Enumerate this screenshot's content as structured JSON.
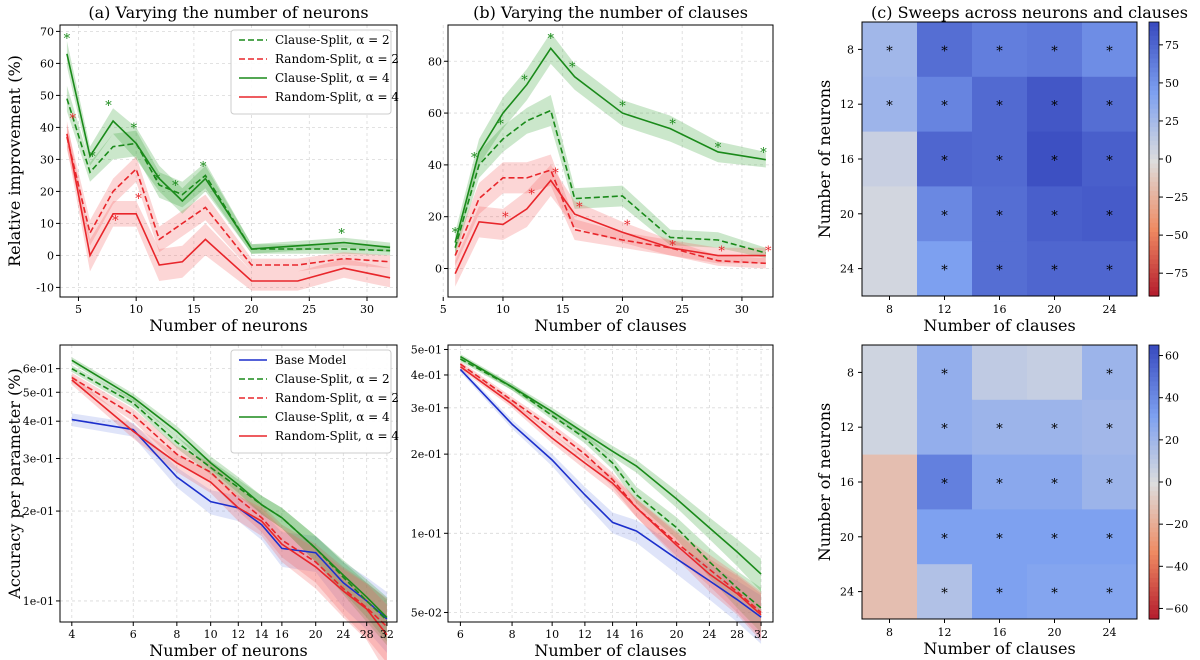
{
  "colors": {
    "green": "#1a8a1a",
    "red": "#e8262b",
    "blue": "#1c2fcc",
    "green_band": "#2e9e2e",
    "red_band": "#f25a5a",
    "blue_band": "#7f93e8",
    "grid": "#d9d9d9"
  },
  "chart_data": [
    {
      "id": "a",
      "type": "line",
      "title": "(a) Varying the number of neurons",
      "xlabel": "Number of neurons",
      "ylabel": "Relative improvement (%)",
      "xlim": [
        3.4,
        32.6
      ],
      "ylim": [
        -13,
        72
      ],
      "xticks": [
        5,
        10,
        15,
        20,
        25,
        30
      ],
      "yticks": [
        -10,
        0,
        10,
        20,
        30,
        40,
        50,
        60,
        70
      ],
      "grid": true,
      "legend_position": "top-right",
      "legend": [
        "Clause-Split, α = 2",
        "Random-Split, α = 2",
        "Clause-Split, α = 4",
        "Random-Split, α = 4"
      ],
      "x": [
        4,
        6,
        8,
        10,
        12,
        14,
        16,
        20,
        24,
        28,
        32
      ],
      "series": [
        {
          "name": "Clause-Split, α = 2",
          "color": "green",
          "dash": true,
          "values": [
            49,
            26,
            34,
            35,
            22,
            19,
            25,
            2,
            2,
            2,
            1.5
          ],
          "band": [
            4,
            3,
            4,
            4,
            4,
            4,
            4,
            1.5,
            1.5,
            1.5,
            1.5
          ]
        },
        {
          "name": "Random-Split, α = 2",
          "color": "red",
          "dash": true,
          "values": [
            37,
            7,
            20,
            27,
            5,
            10,
            15,
            -3,
            -3,
            -1,
            -2
          ],
          "band": [
            4,
            4,
            4,
            4,
            4,
            4,
            4,
            2,
            2,
            2,
            2
          ]
        },
        {
          "name": "Clause-Split, α = 4",
          "color": "green",
          "dash": false,
          "values": [
            63,
            31,
            42,
            35,
            24,
            17,
            24,
            2,
            3,
            4,
            2.5
          ],
          "band": [
            4,
            3,
            4,
            5,
            4,
            4,
            4,
            1.5,
            1.5,
            1.5,
            1.5
          ]
        },
        {
          "name": "Random-Split, α = 4",
          "color": "red",
          "dash": false,
          "values": [
            38,
            0,
            13,
            13,
            -3,
            -2,
            5,
            -8,
            -8,
            -4,
            -7
          ],
          "band": [
            4,
            5,
            4,
            4,
            5,
            5,
            5,
            3,
            3,
            3,
            3
          ]
        }
      ],
      "stars": [
        {
          "x": 4,
          "y": 68,
          "color": "green"
        },
        {
          "x": 4.5,
          "y": 43,
          "color": "red"
        },
        {
          "x": 6.2,
          "y": 31,
          "color": "green"
        },
        {
          "x": 7.6,
          "y": 47,
          "color": "green"
        },
        {
          "x": 8.2,
          "y": 11,
          "color": "red"
        },
        {
          "x": 9.8,
          "y": 40,
          "color": "green"
        },
        {
          "x": 10.2,
          "y": 18,
          "color": "red"
        },
        {
          "x": 11.8,
          "y": 24,
          "color": "green"
        },
        {
          "x": 13.4,
          "y": 22,
          "color": "green"
        },
        {
          "x": 15.8,
          "y": 28,
          "color": "green"
        },
        {
          "x": 27.8,
          "y": 7,
          "color": "green"
        }
      ]
    },
    {
      "id": "b",
      "type": "line",
      "title": "(b) Varying the number of clauses",
      "xlabel": "Number of clauses",
      "ylabel": "",
      "xlim": [
        5.4,
        32.6
      ],
      "ylim": [
        -11,
        94
      ],
      "xticks": [
        5,
        10,
        15,
        20,
        25,
        30
      ],
      "yticks": [
        0,
        20,
        40,
        60,
        80
      ],
      "grid": true,
      "x": [
        6,
        8,
        10,
        12,
        14,
        16,
        20,
        24,
        28,
        32
      ],
      "series": [
        {
          "name": "Clause-Split, α = 2",
          "color": "green",
          "dash": true,
          "values": [
            8,
            40,
            50,
            57,
            61,
            27,
            28,
            12,
            11,
            6
          ],
          "band": [
            3,
            5,
            5,
            5,
            6,
            4,
            4,
            3,
            3,
            2
          ]
        },
        {
          "name": "Random-Split, α = 2",
          "color": "red",
          "dash": true,
          "values": [
            5,
            27,
            35,
            35,
            38,
            15,
            11,
            8,
            3,
            2
          ],
          "band": [
            4,
            6,
            6,
            6,
            6,
            4,
            3,
            3,
            2,
            2
          ]
        },
        {
          "name": "Clause-Split, α = 4",
          "color": "green",
          "dash": false,
          "values": [
            10,
            45,
            60,
            71,
            85,
            74,
            60,
            54,
            45,
            42
          ],
          "band": [
            4,
            5,
            6,
            6,
            6,
            5,
            5,
            5,
            4,
            3
          ]
        },
        {
          "name": "Random-Split, α = 4",
          "color": "red",
          "dash": false,
          "values": [
            -2,
            18,
            17,
            23,
            34,
            21,
            14,
            8,
            5,
            5
          ],
          "band": [
            5,
            6,
            6,
            7,
            6,
            5,
            4,
            3,
            3,
            3
          ]
        }
      ],
      "stars": [
        {
          "x": 6,
          "y": 14,
          "color": "green"
        },
        {
          "x": 7.6,
          "y": 43,
          "color": "green"
        },
        {
          "x": 9.8,
          "y": 56,
          "color": "green"
        },
        {
          "x": 10.2,
          "y": 20,
          "color": "red"
        },
        {
          "x": 11.8,
          "y": 73,
          "color": "green"
        },
        {
          "x": 12.4,
          "y": 29,
          "color": "red"
        },
        {
          "x": 14,
          "y": 89,
          "color": "green"
        },
        {
          "x": 14.4,
          "y": 37,
          "color": "red"
        },
        {
          "x": 15.8,
          "y": 78,
          "color": "green"
        },
        {
          "x": 16.4,
          "y": 24,
          "color": "red"
        },
        {
          "x": 20,
          "y": 63,
          "color": "green"
        },
        {
          "x": 20.4,
          "y": 17,
          "color": "red"
        },
        {
          "x": 24.2,
          "y": 56,
          "color": "green"
        },
        {
          "x": 24.2,
          "y": 9,
          "color": "red"
        },
        {
          "x": 28,
          "y": 47,
          "color": "green"
        },
        {
          "x": 28.3,
          "y": 7,
          "color": "red"
        },
        {
          "x": 31.8,
          "y": 45,
          "color": "green"
        },
        {
          "x": 32.2,
          "y": 7,
          "color": "red"
        }
      ]
    },
    {
      "id": "c",
      "type": "heatmap",
      "title": "(c) Sweeps across neurons and clauses",
      "xlabel": "Number of clauses",
      "ylabel": "Number of neurons",
      "xticklabels": [
        "8",
        "12",
        "16",
        "20",
        "24"
      ],
      "yticklabels": [
        "8",
        "12",
        "16",
        "20",
        "24"
      ],
      "vrange": [
        -90,
        90
      ],
      "colorbar_ticks": [
        75,
        50,
        25,
        0,
        -25,
        -50,
        -75
      ],
      "cmap": "coolwarm_r",
      "values": [
        [
          28,
          72,
          63,
          66,
          55
        ],
        [
          30,
          60,
          74,
          84,
          72
        ],
        [
          10,
          76,
          74,
          88,
          80
        ],
        [
          5,
          58,
          72,
          80,
          82
        ],
        [
          5,
          45,
          72,
          76,
          76
        ]
      ],
      "stars": [
        [
          true,
          true,
          true,
          true,
          true
        ],
        [
          true,
          true,
          true,
          true,
          true
        ],
        [
          false,
          true,
          true,
          true,
          true
        ],
        [
          false,
          true,
          true,
          true,
          true
        ],
        [
          false,
          true,
          true,
          true,
          true
        ]
      ]
    },
    {
      "id": "d",
      "type": "line",
      "title": "",
      "xlabel": "Number of neurons",
      "ylabel": "Accuracy per parameter (%)",
      "xscale": "log",
      "yscale": "log",
      "xlim": [
        3.7,
        34.2
      ],
      "ylim": [
        0.085,
        0.72
      ],
      "xticks": [
        4,
        6,
        8,
        10,
        12,
        14,
        16,
        20,
        24,
        28,
        32
      ],
      "yticks": [
        0.1,
        0.2,
        0.3,
        0.4,
        0.5,
        0.6
      ],
      "yticklabels": [
        "1e-01",
        "2e-01",
        "3e-01",
        "4e-01",
        "5e-01",
        "6e-01"
      ],
      "grid": true,
      "legend_position": "top-right",
      "legend": [
        "Base Model",
        "Clause-Split, α = 2",
        "Random-Split, α = 2",
        "Clause-Split, α = 4",
        "Random-Split, α = 4"
      ],
      "x": [
        4,
        6,
        8,
        10,
        12,
        14,
        16,
        20,
        24,
        28,
        32
      ],
      "series": [
        {
          "name": "Base Model",
          "color": "blue",
          "dash": false,
          "values": [
            0.405,
            0.375,
            0.26,
            0.215,
            0.205,
            0.18,
            0.15,
            0.145,
            0.115,
            0.1,
            0.087
          ],
          "band": 0.02
        },
        {
          "name": "Clause-Split, α = 2",
          "color": "green",
          "dash": true,
          "values": [
            0.6,
            0.46,
            0.34,
            0.28,
            0.24,
            0.21,
            0.19,
            0.15,
            0.12,
            0.1,
            0.086
          ],
          "band": 0.015
        },
        {
          "name": "Random-Split, α = 2",
          "color": "red",
          "dash": true,
          "values": [
            0.56,
            0.42,
            0.31,
            0.27,
            0.22,
            0.19,
            0.16,
            0.135,
            0.11,
            0.095,
            0.082
          ],
          "band": 0.02
        },
        {
          "name": "Clause-Split, α = 4",
          "color": "green",
          "dash": false,
          "values": [
            0.64,
            0.48,
            0.37,
            0.29,
            0.245,
            0.21,
            0.19,
            0.15,
            0.122,
            0.103,
            0.088
          ],
          "band": 0.015
        },
        {
          "name": "Random-Split, α = 4",
          "color": "red",
          "dash": false,
          "values": [
            0.55,
            0.37,
            0.29,
            0.25,
            0.205,
            0.185,
            0.155,
            0.13,
            0.108,
            0.094,
            0.077
          ],
          "band": 0.02
        }
      ]
    },
    {
      "id": "e",
      "type": "line",
      "title": "",
      "xlabel": "Number of clauses",
      "ylabel": "",
      "xscale": "log",
      "yscale": "log",
      "xlim": [
        5.6,
        34.2
      ],
      "ylim": [
        0.046,
        0.52
      ],
      "xticks": [
        6,
        8,
        10,
        12,
        14,
        16,
        20,
        24,
        28,
        32
      ],
      "yticks": [
        0.05,
        0.1,
        0.2,
        0.3,
        0.4,
        0.5
      ],
      "yticklabels": [
        "5e-02",
        "1e-01",
        "2e-01",
        "3e-01",
        "4e-01",
        "5e-01"
      ],
      "grid": true,
      "x": [
        6,
        8,
        10,
        12,
        14,
        16,
        20,
        24,
        28,
        32
      ],
      "series": [
        {
          "name": "Base Model",
          "color": "blue",
          "dash": false,
          "values": [
            0.42,
            0.26,
            0.19,
            0.14,
            0.11,
            0.102,
            0.08,
            0.066,
            0.056,
            0.048
          ],
          "band": 0.01
        },
        {
          "name": "Clause-Split, α = 2",
          "color": "green",
          "dash": true,
          "values": [
            0.46,
            0.36,
            0.28,
            0.23,
            0.185,
            0.14,
            0.105,
            0.078,
            0.062,
            0.052
          ],
          "band": 0.01
        },
        {
          "name": "Random-Split, α = 2",
          "color": "red",
          "dash": true,
          "values": [
            0.44,
            0.32,
            0.25,
            0.2,
            0.16,
            0.125,
            0.092,
            0.073,
            0.06,
            0.05
          ],
          "band": 0.01
        },
        {
          "name": "Clause-Split, α = 4",
          "color": "green",
          "dash": false,
          "values": [
            0.47,
            0.36,
            0.29,
            0.24,
            0.205,
            0.18,
            0.135,
            0.105,
            0.085,
            0.07
          ],
          "band": 0.01
        },
        {
          "name": "Random-Split, α = 4",
          "color": "red",
          "dash": false,
          "values": [
            0.43,
            0.31,
            0.23,
            0.185,
            0.155,
            0.125,
            0.09,
            0.07,
            0.059,
            0.049
          ],
          "band": 0.01
        }
      ]
    },
    {
      "id": "f",
      "type": "heatmap",
      "title": "",
      "xlabel": "Number of clauses",
      "ylabel": "Number of neurons",
      "xticklabels": [
        "8",
        "12",
        "16",
        "20",
        "24"
      ],
      "yticklabels": [
        "8",
        "12",
        "16",
        "20",
        "24"
      ],
      "vrange": [
        -65,
        65
      ],
      "colorbar_ticks": [
        60,
        40,
        20,
        0,
        -20,
        -40,
        -60
      ],
      "cmap": "coolwarm_r",
      "values": [
        [
          5,
          25,
          10,
          8,
          22
        ],
        [
          5,
          25,
          22,
          22,
          20
        ],
        [
          -12,
          45,
          28,
          28,
          22
        ],
        [
          -12,
          32,
          32,
          32,
          32
        ],
        [
          -12,
          15,
          32,
          30,
          30
        ]
      ],
      "stars": [
        [
          false,
          true,
          false,
          false,
          true
        ],
        [
          false,
          true,
          true,
          true,
          true
        ],
        [
          false,
          true,
          true,
          true,
          true
        ],
        [
          false,
          true,
          true,
          true,
          true
        ],
        [
          false,
          true,
          true,
          true,
          true
        ]
      ]
    }
  ]
}
